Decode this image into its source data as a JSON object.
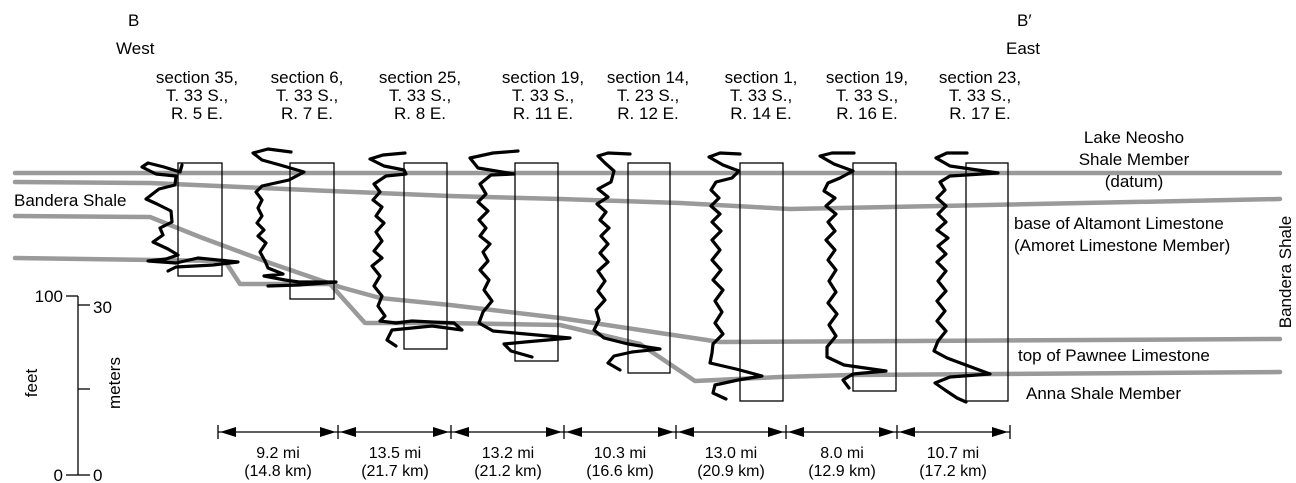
{
  "endpoints": {
    "west_letter": "B",
    "west_dir": "West",
    "east_letter": "B′",
    "east_dir": "East"
  },
  "sections": [
    {
      "l1": "section 35,",
      "l2": "T. 33 S.,",
      "l3": "R. 5 E."
    },
    {
      "l1": "section 6,",
      "l2": "T. 33 S.,",
      "l3": "R. 7 E."
    },
    {
      "l1": "section 25,",
      "l2": "T. 33 S.,",
      "l3": "R. 8 E."
    },
    {
      "l1": "section 19,",
      "l2": "T. 33 S.,",
      "l3": "R. 11 E."
    },
    {
      "l1": "section 14,",
      "l2": "T. 23 S.,",
      "l3": "R. 12 E."
    },
    {
      "l1": "section 1,",
      "l2": "T. 33 S.,",
      "l3": "R. 14 E."
    },
    {
      "l1": "section 19,",
      "l2": "T. 33 S.,",
      "l3": "R. 16 E."
    },
    {
      "l1": "section 23,",
      "l2": "T. 33 S.,",
      "l3": "R. 17 E."
    }
  ],
  "units": {
    "lake_neosho_1": "Lake Neosho",
    "lake_neosho_2": "Shale Member",
    "lake_neosho_3": "(datum)",
    "altamont_1": "base of Altamont Limestone",
    "altamont_2": "(Amoret Limestone Member)",
    "bandera_west": "Bandera Shale",
    "bandera_east": "Bandera Shale",
    "pawnee": "top of Pawnee Limestone",
    "anna": "Anna Shale Member"
  },
  "scale": {
    "feet_label": "feet",
    "meters_label": "meters",
    "feet_top": "100",
    "feet_bottom": "0",
    "meters_top": "30",
    "meters_bottom": "0"
  },
  "distances": [
    {
      "mi": "9.2 mi",
      "km": "(14.8 km)"
    },
    {
      "mi": "13.5 mi",
      "km": "(21.7 km)"
    },
    {
      "mi": "13.2 mi",
      "km": "(21.2 km)"
    },
    {
      "mi": "10.3 mi",
      "km": "(16.6 km)"
    },
    {
      "mi": "13.0 mi",
      "km": "(20.9 km)"
    },
    {
      "mi": "8.0 mi",
      "km": "(12.9 km)"
    },
    {
      "mi": "10.7 mi",
      "km": "(17.2 km)"
    }
  ]
}
